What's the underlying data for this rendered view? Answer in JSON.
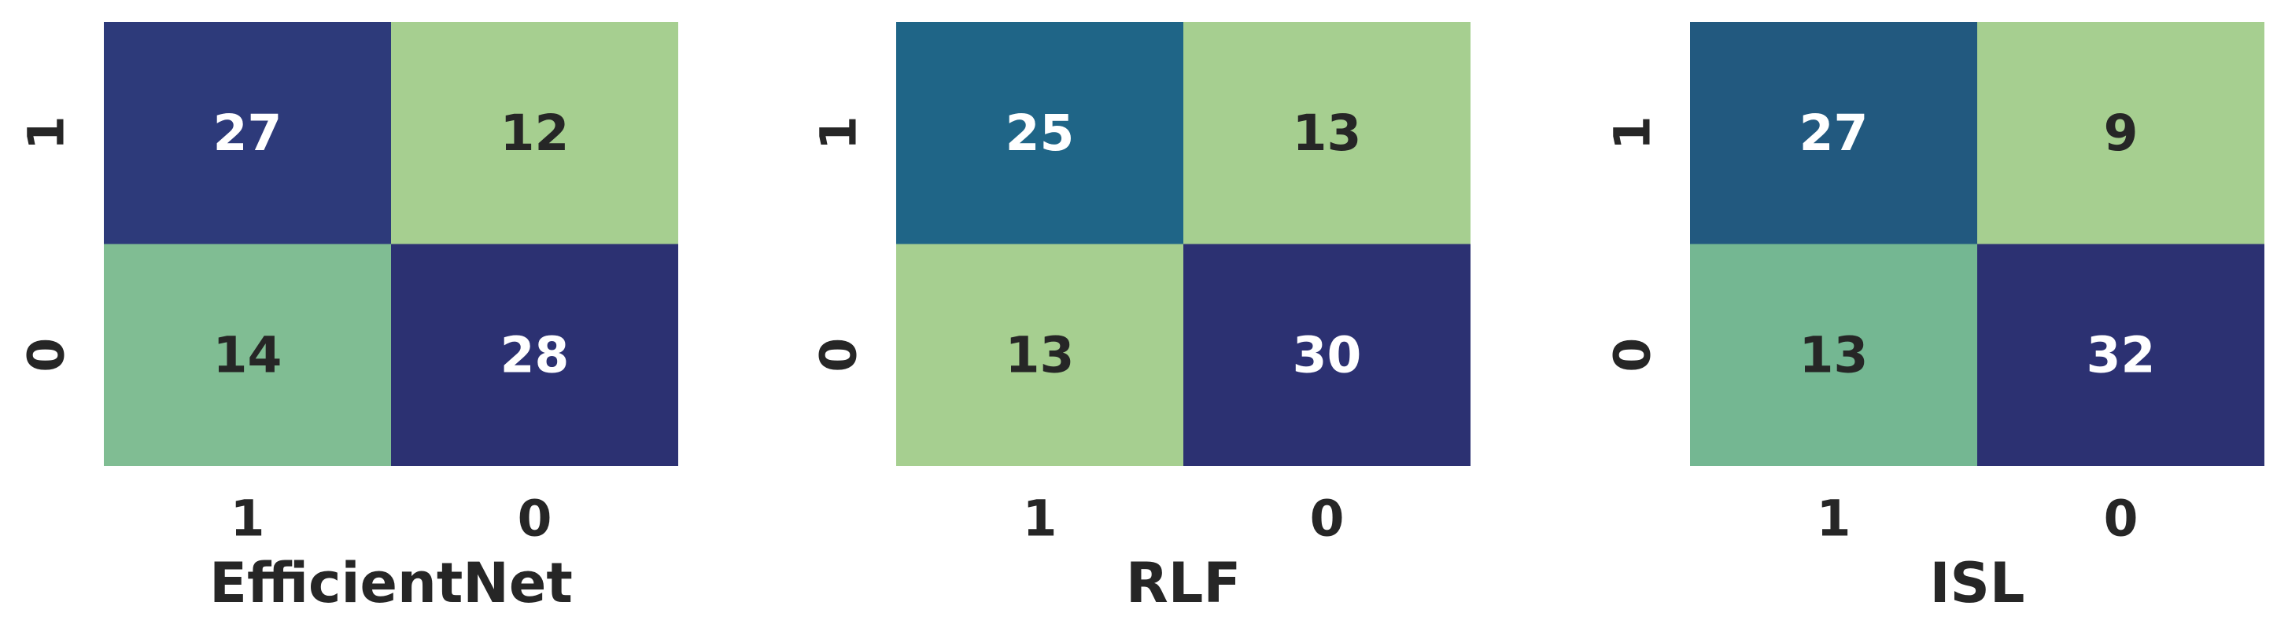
{
  "chart_data": [
    {
      "type": "heatmap",
      "xlabel": "EfficientNet",
      "x_categories": [
        "1",
        "0"
      ],
      "y_categories": [
        "1",
        "0"
      ],
      "values": [
        [
          27,
          12
        ],
        [
          14,
          28
        ]
      ],
      "colors": [
        [
          "#2d3a7a",
          "#a6cf90"
        ],
        [
          "#80bd93",
          "#2c3172"
        ]
      ]
    },
    {
      "type": "heatmap",
      "xlabel": "RLF",
      "x_categories": [
        "1",
        "0"
      ],
      "y_categories": [
        "1",
        "0"
      ],
      "values": [
        [
          25,
          13
        ],
        [
          13,
          30
        ]
      ],
      "colors": [
        [
          "#1f6587",
          "#a6cf90"
        ],
        [
          "#a6cf90",
          "#2c3172"
        ]
      ]
    },
    {
      "type": "heatmap",
      "xlabel": "ISL",
      "x_categories": [
        "1",
        "0"
      ],
      "y_categories": [
        "1",
        "0"
      ],
      "values": [
        [
          27,
          9
        ],
        [
          13,
          32
        ]
      ],
      "colors": [
        [
          "#22597f",
          "#a6cf90"
        ],
        [
          "#74b792",
          "#2c3172"
        ]
      ]
    }
  ]
}
